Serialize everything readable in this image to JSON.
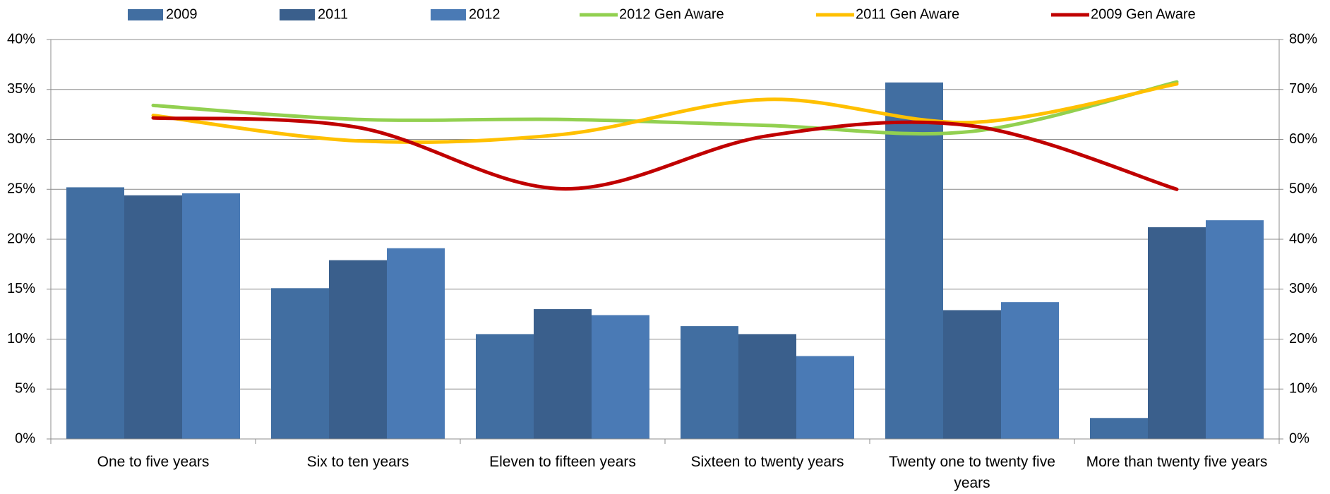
{
  "chart_data": {
    "type": "bar",
    "categories": [
      "One to five years",
      "Six to ten years",
      "Eleven to fifteen years",
      "Sixteen to twenty years",
      "Twenty one to twenty five years",
      "More than twenty five years"
    ],
    "series": [
      {
        "name": "2009",
        "color": "#416ea1",
        "values": [
          25.2,
          15.1,
          10.5,
          11.3,
          35.7,
          2.1
        ]
      },
      {
        "name": "2011",
        "color": "#3a5f8c",
        "values": [
          24.4,
          17.9,
          13.0,
          10.5,
          12.9,
          21.2
        ]
      },
      {
        "name": "2012",
        "color": "#4a7ab5",
        "values": [
          24.6,
          19.1,
          12.4,
          8.3,
          13.7,
          21.9
        ]
      },
      {
        "name": "2012 Gen Aware",
        "type": "line",
        "axis": "y2",
        "color": "#92d050",
        "values": [
          66.8,
          64.0,
          64.0,
          62.8,
          61.6,
          71.5
        ]
      },
      {
        "name": "2011 Gen Aware",
        "type": "line",
        "axis": "y2",
        "color": "#ffc000",
        "values": [
          64.8,
          59.7,
          61.0,
          68.0,
          63.4,
          71.1
        ]
      },
      {
        "name": "2009 Gen Aware",
        "type": "line",
        "axis": "y2",
        "color": "#c00000",
        "values": [
          64.3,
          62.4,
          50.1,
          60.7,
          62.7,
          50.0
        ]
      }
    ],
    "ylim": [
      0,
      40
    ],
    "yticks": [
      {
        "value": 0,
        "label": "0%"
      },
      {
        "value": 5,
        "label": "5%"
      },
      {
        "value": 10,
        "label": "10%"
      },
      {
        "value": 15,
        "label": "15%"
      },
      {
        "value": 20,
        "label": "20%"
      },
      {
        "value": 25,
        "label": "25%"
      },
      {
        "value": 30,
        "label": "30%"
      },
      {
        "value": 35,
        "label": "35%"
      },
      {
        "value": 40,
        "label": "40%"
      }
    ],
    "y2lim": [
      0,
      80
    ],
    "y2ticks": [
      {
        "value": 0,
        "label": "0%"
      },
      {
        "value": 10,
        "label": "10%"
      },
      {
        "value": 20,
        "label": "20%"
      },
      {
        "value": 30,
        "label": "30%"
      },
      {
        "value": 40,
        "label": "40%"
      },
      {
        "value": 50,
        "label": "50%"
      },
      {
        "value": 60,
        "label": "60%"
      },
      {
        "value": 70,
        "label": "70%"
      },
      {
        "value": 80,
        "label": "80%"
      }
    ],
    "grid": true,
    "legend": "top",
    "smooth": true
  }
}
